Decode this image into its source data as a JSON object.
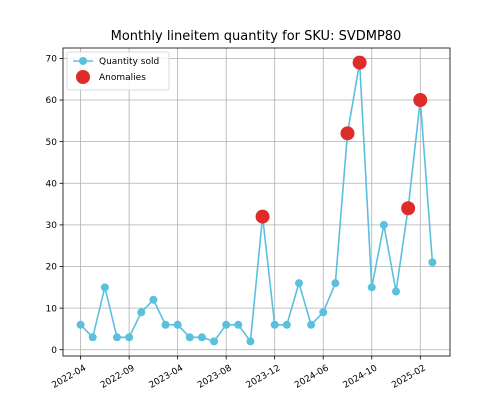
{
  "chart_data": {
    "type": "line",
    "title": "Monthly lineitem quantity for SKU: SVDMP80",
    "xlabel": "",
    "ylabel": "",
    "ylim": [
      -1.5,
      72.5
    ],
    "yticks": [
      0,
      10,
      20,
      30,
      40,
      50,
      60,
      70
    ],
    "xticks": [
      "2022-04",
      "2022-09",
      "2023-04",
      "2023-08",
      "2023-12",
      "2024-06",
      "2024-10",
      "2025-02"
    ],
    "xtick_positions": [
      0,
      4,
      8,
      12,
      16,
      20,
      24,
      28
    ],
    "x": [
      0,
      1,
      2,
      3,
      4,
      5,
      6,
      7,
      8,
      9,
      10,
      11,
      12,
      13,
      14,
      15,
      16,
      17,
      18,
      19,
      20,
      21,
      22,
      23,
      24,
      25,
      26,
      27,
      28,
      29
    ],
    "grid": true,
    "legend_position": "upper-left",
    "series": [
      {
        "name": "Quantity sold",
        "color": "#5bc0de",
        "values": [
          6,
          3,
          15,
          3,
          3,
          9,
          12,
          6,
          6,
          3,
          3,
          2,
          6,
          6,
          2,
          32,
          6,
          6,
          16,
          6,
          9,
          16,
          52,
          69,
          15,
          30,
          14,
          34,
          60,
          21
        ]
      }
    ],
    "anomalies": {
      "name": "Anomalies",
      "color": "#e02b2b",
      "x": [
        15,
        22,
        23,
        27,
        28
      ],
      "values": [
        32,
        52,
        69,
        34,
        60
      ]
    }
  }
}
